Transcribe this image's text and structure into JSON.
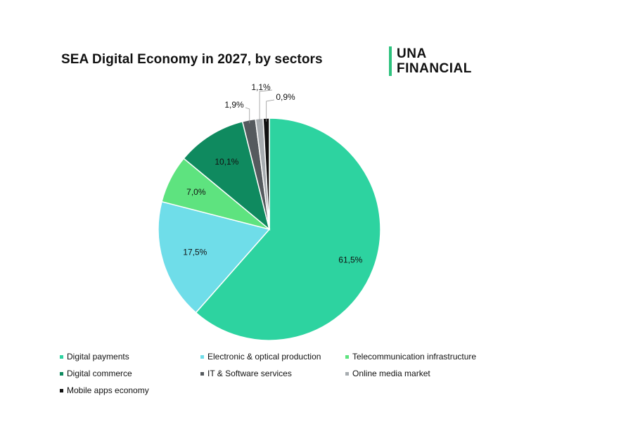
{
  "chart_data": {
    "type": "pie",
    "title": "SEA Digital Economy in 2027, by sectors",
    "slices": [
      {
        "name": "Digital payments",
        "value": 61.5,
        "label": "61,5%",
        "color": "#2dd3a0"
      },
      {
        "name": "Electronic & optical production",
        "value": 17.5,
        "label": "17,5%",
        "color": "#6fdde9"
      },
      {
        "name": "Telecommunication infrastructure",
        "value": 7.0,
        "label": "7,0%",
        "color": "#5ee37f"
      },
      {
        "name": "Digital commerce",
        "value": 10.1,
        "label": "10,1%",
        "color": "#0f8a5f"
      },
      {
        "name": "IT & Software services",
        "value": 1.9,
        "label": "1,9%",
        "color": "#555a5e"
      },
      {
        "name": "Online media market",
        "value": 1.1,
        "label": "1,1%",
        "color": "#a7acb0"
      },
      {
        "name": "Mobile apps economy",
        "value": 0.9,
        "label": "0,9%",
        "color": "#111111"
      }
    ],
    "legend_position": "bottom"
  },
  "logo": {
    "line1": "UNA",
    "line2": "FINANCIAL",
    "accent": "#2ec27e"
  }
}
